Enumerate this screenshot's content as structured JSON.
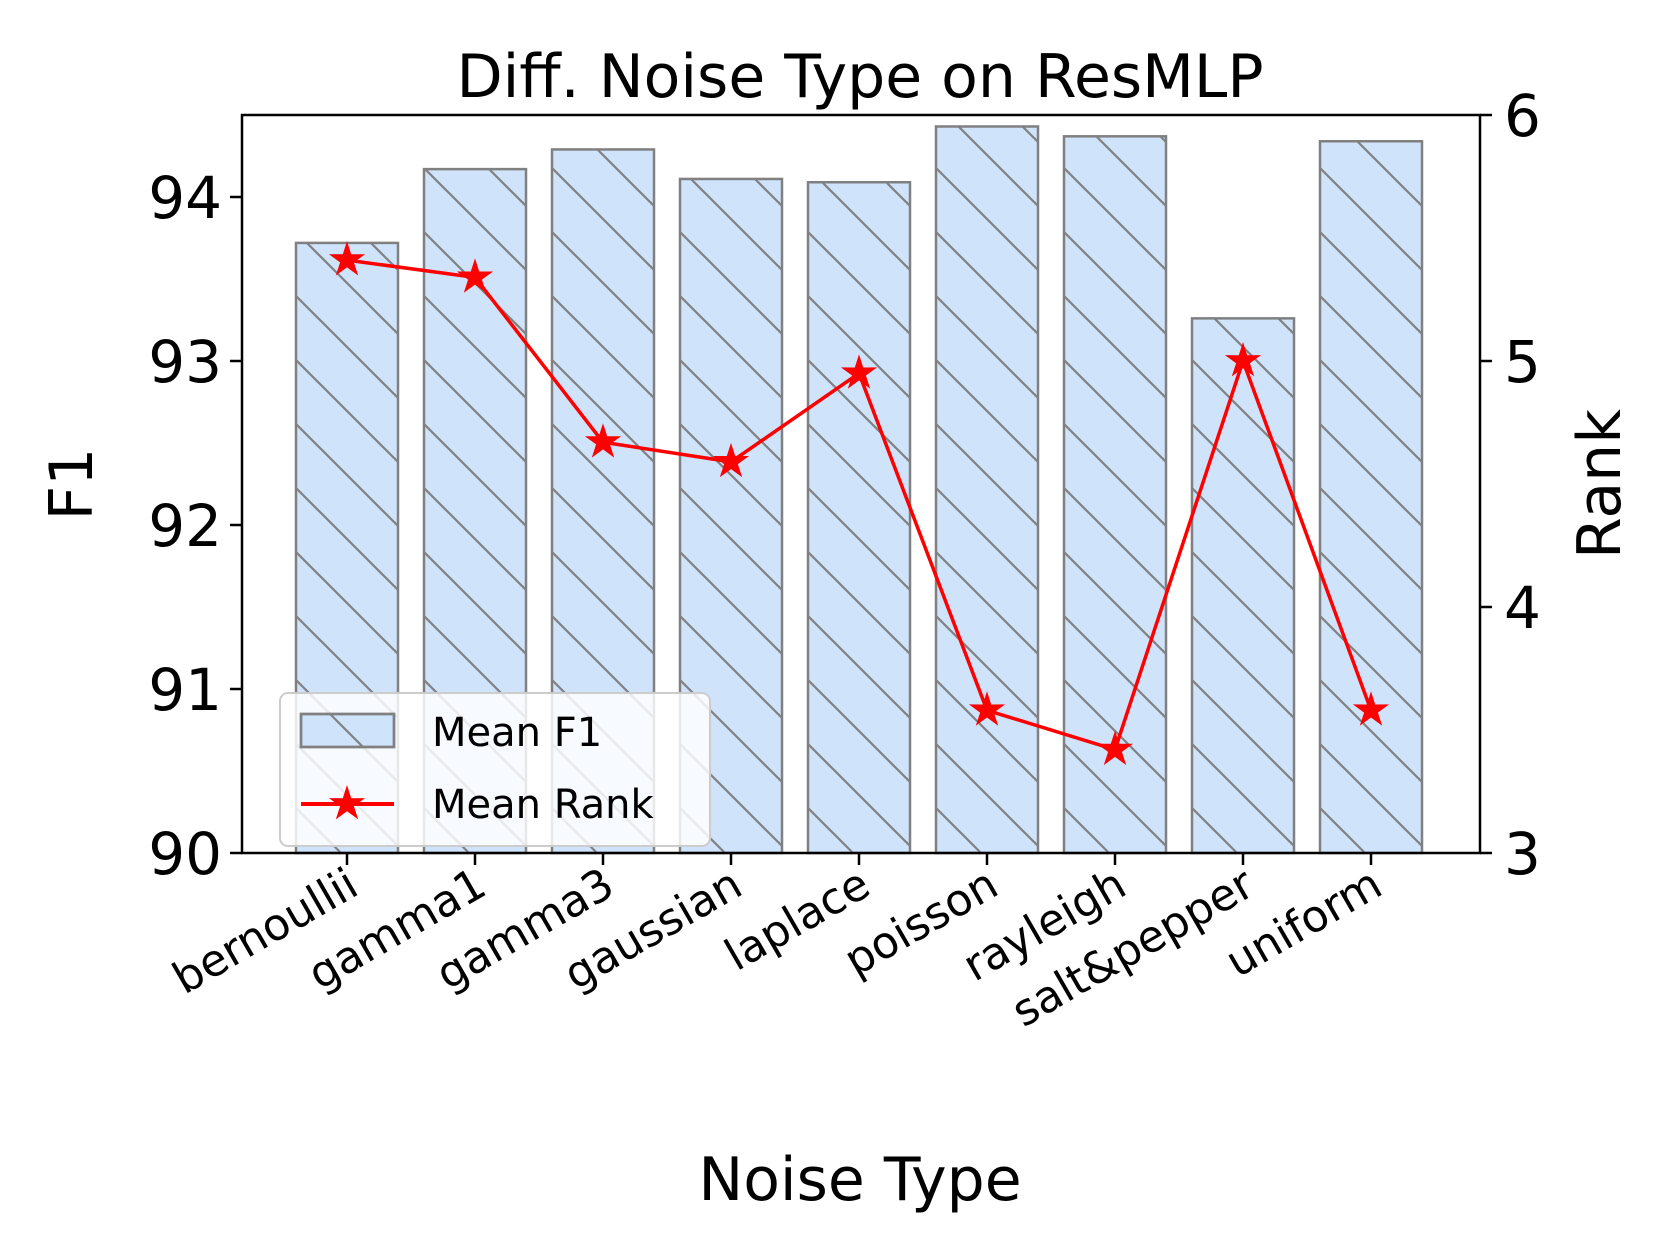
{
  "chart_data": {
    "type": "bar",
    "title": "Diff. Noise Type on ResMLP",
    "xlabel": "Noise Type",
    "ylabel": "F1",
    "y2label": "Rank",
    "categories": [
      "bernoullii",
      "gamma1",
      "gamma3",
      "gaussian",
      "laplace",
      "poisson",
      "rayleigh",
      "salt&pepper",
      "uniform"
    ],
    "series": [
      {
        "name": "Mean F1",
        "type": "bar",
        "axis": "left",
        "values": [
          93.72,
          94.17,
          94.29,
          94.11,
          94.09,
          94.43,
          94.37,
          93.26,
          94.34
        ],
        "color": "#cfe3fb",
        "edge_color": "#808080"
      },
      {
        "name": "Mean Rank",
        "type": "line",
        "axis": "right",
        "marker": "star",
        "values": [
          5.41,
          5.34,
          4.67,
          4.59,
          4.95,
          3.58,
          3.42,
          5.0,
          3.58
        ],
        "color": "#ff0000"
      }
    ],
    "ylim": [
      90,
      94.5
    ],
    "y2lim": [
      3,
      6
    ],
    "yticks": [
      90,
      91,
      92,
      93,
      94
    ],
    "y2ticks": [
      3,
      4,
      5,
      6
    ],
    "legend": {
      "location": "lower-left"
    },
    "grid": false
  }
}
